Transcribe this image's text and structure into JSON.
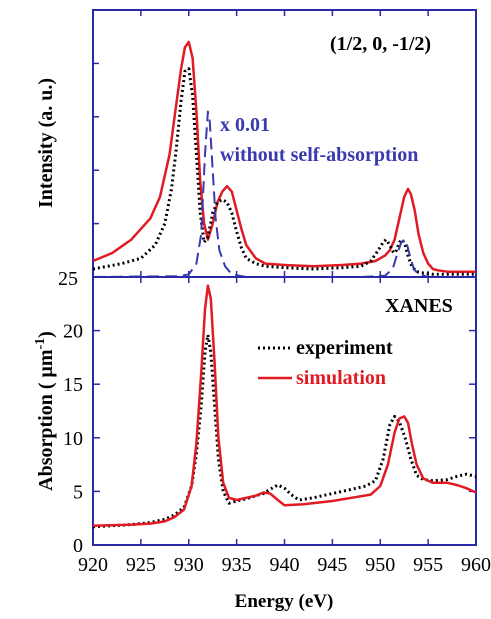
{
  "colors": {
    "frame": "#2a2aa6",
    "experiment": "#000000",
    "simulation": "#e01b24",
    "no_self_absorption": "#3a3ab0"
  },
  "chart_data": [
    {
      "id": "top",
      "type": "line",
      "annotation": "(1/2, 0, -1/2)",
      "ylabel": "Intensity (a. u.)",
      "xlabel": "",
      "xlim": [
        920,
        960
      ],
      "ylim": [
        0,
        1
      ],
      "ytick_label_bottom": "25",
      "grid": false,
      "legend": {
        "entries": [
          {
            "text_line1": "x 0.01",
            "text_line2": "without self-absorption",
            "series": "no_self_absorption"
          }
        ],
        "placement": "upper-middle"
      },
      "series": [
        {
          "key": "simulation",
          "style": "solid",
          "x": [
            920,
            922,
            924,
            926,
            927,
            928,
            928.6,
            929.2,
            929.6,
            930,
            930.4,
            930.8,
            931.2,
            931.6,
            932,
            932.5,
            933,
            933.5,
            934,
            934.5,
            935,
            935.5,
            936,
            937,
            938,
            940,
            943,
            946,
            948,
            949.5,
            950.5,
            951,
            951.5,
            952,
            952.5,
            952.9,
            953.2,
            953.6,
            954,
            954.5,
            955,
            955.5,
            956,
            957,
            958,
            960
          ],
          "y": [
            0.06,
            0.09,
            0.14,
            0.22,
            0.3,
            0.46,
            0.62,
            0.78,
            0.86,
            0.88,
            0.82,
            0.62,
            0.36,
            0.2,
            0.14,
            0.2,
            0.28,
            0.32,
            0.34,
            0.32,
            0.25,
            0.18,
            0.12,
            0.07,
            0.05,
            0.045,
            0.04,
            0.045,
            0.05,
            0.06,
            0.08,
            0.1,
            0.14,
            0.22,
            0.3,
            0.33,
            0.31,
            0.25,
            0.16,
            0.09,
            0.05,
            0.03,
            0.025,
            0.02,
            0.02,
            0.02
          ]
        },
        {
          "key": "experiment",
          "style": "dotted",
          "x": [
            920,
            923,
            925,
            926.5,
            927.5,
            928.2,
            928.7,
            929.2,
            929.6,
            930,
            930.4,
            930.8,
            931.2,
            931.6,
            932,
            932.5,
            933,
            933.5,
            934,
            934.5,
            935,
            935.5,
            936,
            937,
            938,
            940,
            943,
            946,
            948,
            949,
            949.8,
            950.3,
            950.6,
            951,
            951.4,
            951.7,
            952,
            952.3,
            952.6,
            952.9,
            953.3,
            953.8,
            954.5,
            955.5,
            957,
            960
          ],
          "y": [
            0.03,
            0.05,
            0.07,
            0.12,
            0.2,
            0.33,
            0.48,
            0.66,
            0.77,
            0.78,
            0.68,
            0.46,
            0.24,
            0.13,
            0.15,
            0.24,
            0.28,
            0.29,
            0.28,
            0.24,
            0.17,
            0.11,
            0.07,
            0.05,
            0.04,
            0.035,
            0.03,
            0.035,
            0.04,
            0.06,
            0.1,
            0.13,
            0.14,
            0.12,
            0.09,
            0.1,
            0.13,
            0.14,
            0.12,
            0.08,
            0.04,
            0.02,
            0.015,
            0.01,
            0.01,
            0.01
          ]
        },
        {
          "key": "no_self_absorption",
          "style": "dashed",
          "x": [
            920,
            929,
            930,
            930.8,
            931.3,
            931.7,
            932,
            932.2,
            932.5,
            932.8,
            933.2,
            933.8,
            934.5,
            936,
            940,
            948,
            950.5,
            951.3,
            951.8,
            952.2,
            952.5,
            952.8,
            953.1,
            953.5,
            954,
            955,
            960
          ],
          "y": [
            0,
            0.003,
            0.01,
            0.05,
            0.16,
            0.46,
            0.62,
            0.58,
            0.4,
            0.22,
            0.1,
            0.04,
            0.01,
            0,
            0,
            0,
            0.005,
            0.03,
            0.09,
            0.13,
            0.14,
            0.12,
            0.08,
            0.03,
            0.01,
            0,
            0
          ]
        }
      ]
    },
    {
      "id": "bottom",
      "type": "line",
      "annotation": "XANES",
      "ylabel_prefix": "Absorption ( ",
      "ylabel_unit": "μm",
      "ylabel_exp": "-1",
      "ylabel_suffix": ")",
      "xlabel": "Energy (eV)",
      "xlim": [
        920,
        960
      ],
      "ylim": [
        0,
        25
      ],
      "xticks": [
        920,
        925,
        930,
        935,
        940,
        945,
        950,
        955,
        960
      ],
      "yticks": [
        0,
        5,
        10,
        15,
        20
      ],
      "grid": false,
      "legend": {
        "entries": [
          {
            "label": "experiment",
            "series": "experiment"
          },
          {
            "label": "simulation",
            "series": "simulation"
          }
        ],
        "placement": "upper-right"
      },
      "series": [
        {
          "key": "experiment",
          "style": "dotted",
          "x": [
            920,
            924,
            926,
            927.5,
            928.5,
            929.5,
            930.3,
            930.8,
            931.3,
            931.7,
            932,
            932.3,
            932.7,
            933.1,
            933.6,
            934.2,
            935,
            936,
            937,
            937.8,
            938.5,
            939.3,
            940,
            940.7,
            941.5,
            943,
            945,
            947,
            948.5,
            949.5,
            950.3,
            951,
            951.5,
            952,
            952.6,
            953.2,
            953.8,
            954.5,
            955.5,
            957,
            958,
            959,
            960
          ],
          "y": [
            1.7,
            1.9,
            2.1,
            2.4,
            2.8,
            3.5,
            5.5,
            8.5,
            13,
            18,
            19.6,
            18,
            13,
            8,
            5,
            3.9,
            4.1,
            4.3,
            4.6,
            4.8,
            5.2,
            5.6,
            5.3,
            4.7,
            4.2,
            4.4,
            4.8,
            5.2,
            5.5,
            6,
            8,
            11.2,
            12,
            11.5,
            10,
            8,
            6.5,
            6.1,
            6,
            6.1,
            6.4,
            6.6,
            6.4
          ]
        },
        {
          "key": "simulation",
          "style": "solid",
          "x": [
            920,
            924,
            926,
            927.5,
            928.5,
            929.5,
            930.3,
            930.8,
            931.3,
            931.7,
            932,
            932.3,
            932.7,
            933.1,
            933.6,
            934.2,
            935,
            936,
            937,
            937.8,
            938.5,
            939.3,
            940,
            942,
            945,
            947,
            949,
            950,
            950.8,
            951.5,
            952,
            952.5,
            952.9,
            953.3,
            953.8,
            954.5,
            955.5,
            957,
            958,
            959,
            960
          ],
          "y": [
            1.8,
            1.9,
            2.0,
            2.2,
            2.6,
            3.3,
            5.5,
            9.5,
            16,
            22,
            24.2,
            23,
            17,
            10,
            5.8,
            4.4,
            4.2,
            4.4,
            4.6,
            4.9,
            4.8,
            4.2,
            3.7,
            3.8,
            4.1,
            4.4,
            4.7,
            5.5,
            7.5,
            10.5,
            11.8,
            12,
            11.4,
            9.5,
            7.5,
            6.2,
            5.8,
            5.8,
            5.6,
            5.3,
            4.9
          ]
        }
      ]
    }
  ]
}
